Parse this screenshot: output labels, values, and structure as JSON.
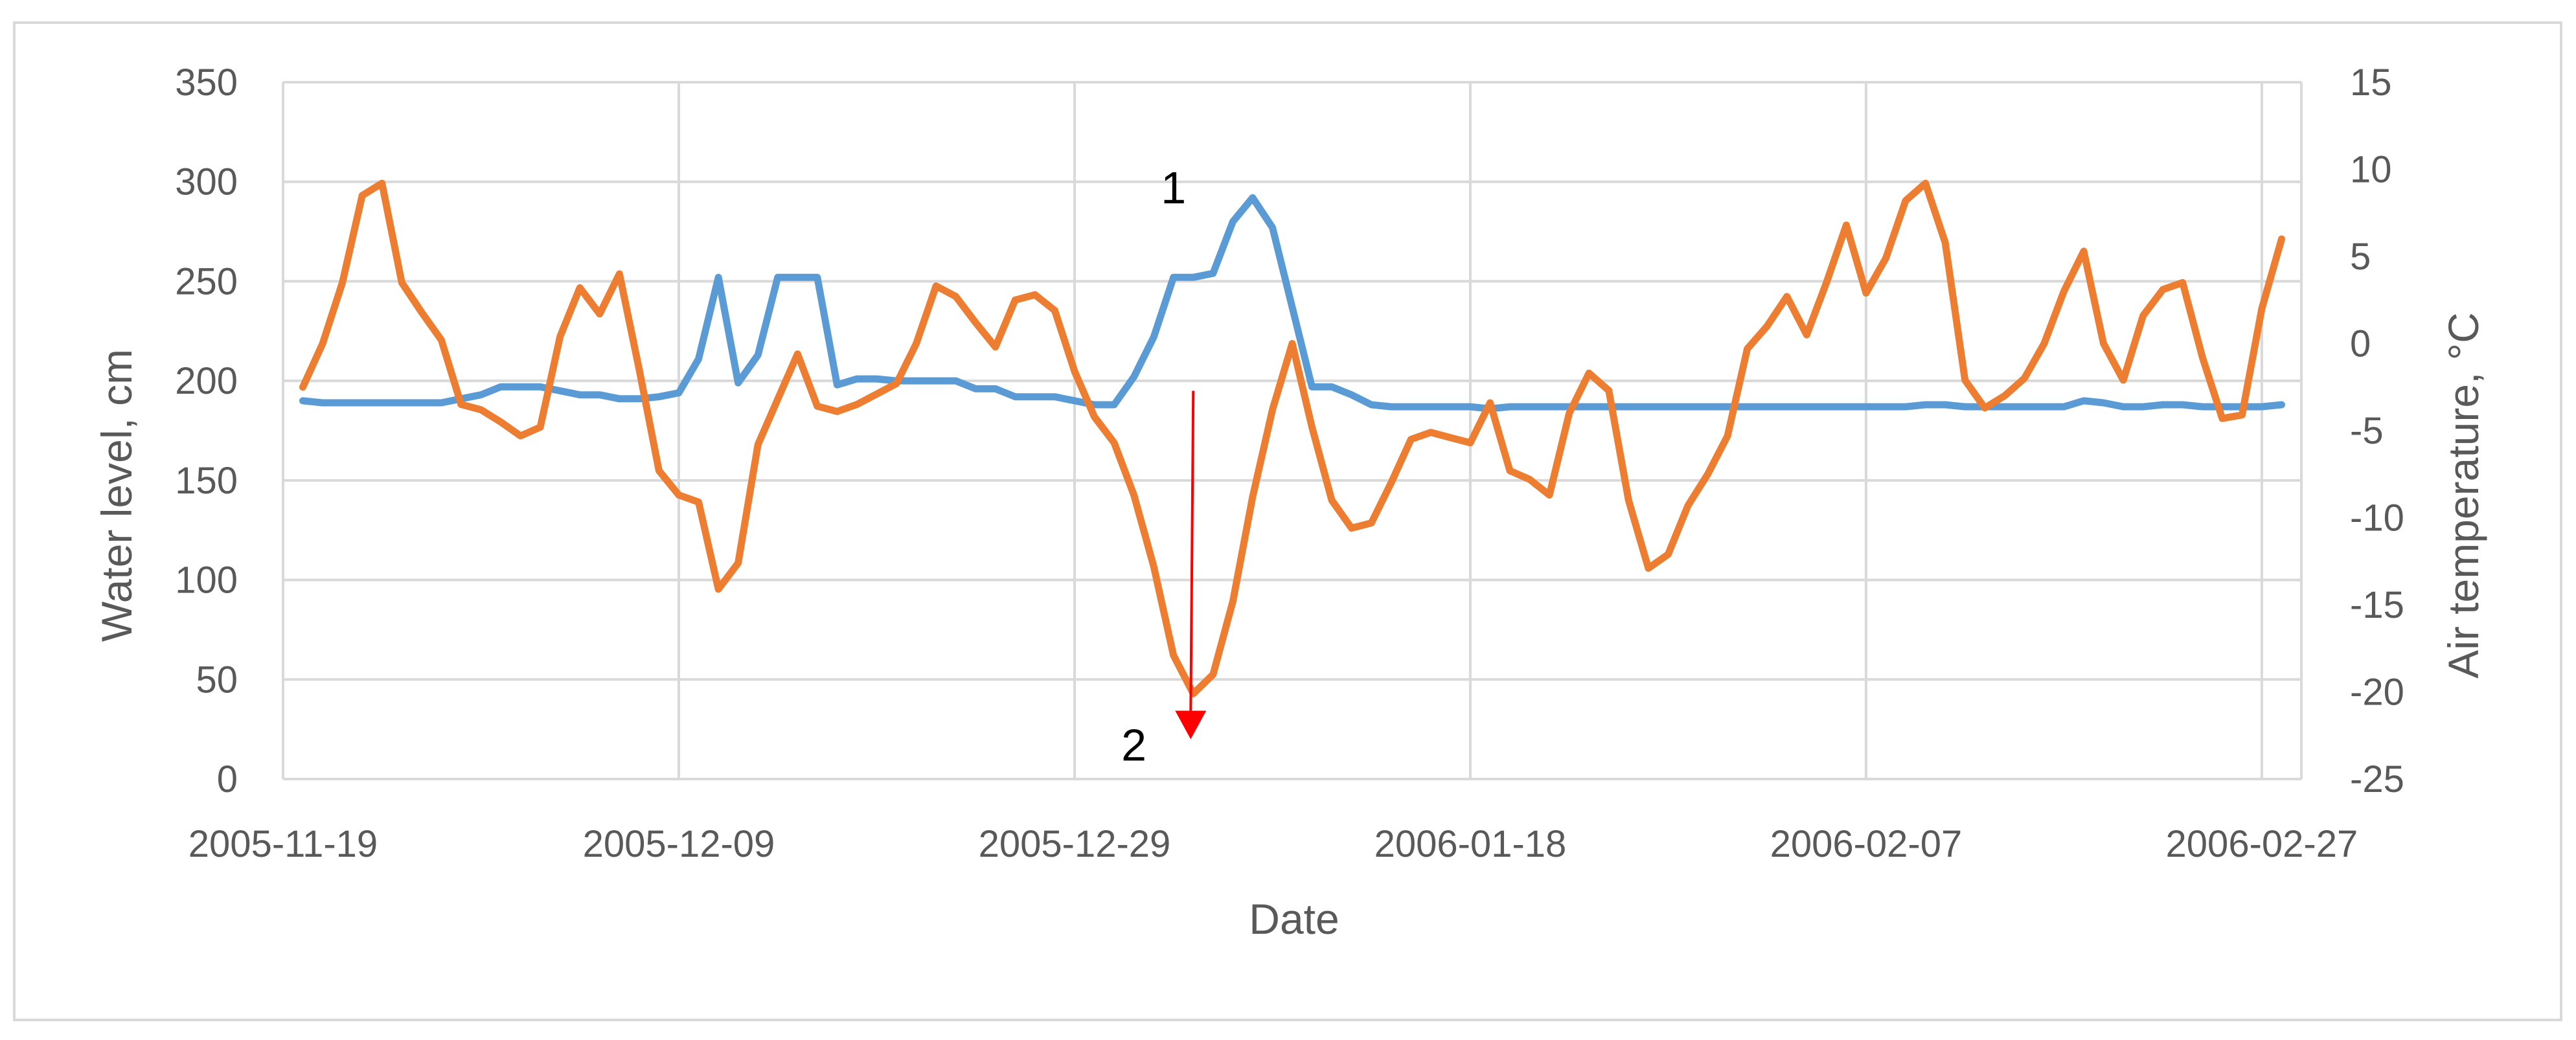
{
  "chart_data": {
    "type": "line",
    "title": "",
    "xlabel": "Date",
    "ylabel": "Water level, cm",
    "y2label": "Air temperature, °C",
    "x_ticks": [
      "2005-11-19",
      "2005-12-09",
      "2005-12-29",
      "2006-01-18",
      "2006-02-07",
      "2006-02-27"
    ],
    "x_range": [
      "2005-11-19",
      "2006-03-01"
    ],
    "ylim": [
      0,
      350
    ],
    "y_ticks": [
      0,
      50,
      100,
      150,
      200,
      250,
      300,
      350
    ],
    "y2lim": [
      -25,
      15
    ],
    "y2_ticks": [
      -25,
      -20,
      -15,
      -10,
      -5,
      0,
      5,
      10,
      15
    ],
    "grid": true,
    "legend": "none",
    "colors": {
      "series_1": "#5B9BD5",
      "series_2": "#ED7D31",
      "arrow": "#FF0000",
      "grid": "#D9D9D9"
    },
    "series": [
      {
        "axis": "left",
        "points": [
          [
            "2005-11-20",
            190
          ],
          [
            "2005-11-21",
            189
          ],
          [
            "2005-11-22",
            189
          ],
          [
            "2005-11-23",
            189
          ],
          [
            "2005-11-24",
            189
          ],
          [
            "2005-11-25",
            189
          ],
          [
            "2005-11-26",
            189
          ],
          [
            "2005-11-27",
            189
          ],
          [
            "2005-11-28",
            191
          ],
          [
            "2005-11-29",
            193
          ],
          [
            "2005-11-30",
            197
          ],
          [
            "2005-12-01",
            197
          ],
          [
            "2005-12-02",
            197
          ],
          [
            "2005-12-03",
            195
          ],
          [
            "2005-12-04",
            193
          ],
          [
            "2005-12-05",
            193
          ],
          [
            "2005-12-06",
            191
          ],
          [
            "2005-12-07",
            191
          ],
          [
            "2005-12-08",
            192
          ],
          [
            "2005-12-09",
            194
          ],
          [
            "2005-12-10",
            211
          ],
          [
            "2005-12-11",
            252
          ],
          [
            "2005-12-12",
            199
          ],
          [
            "2005-12-13",
            213
          ],
          [
            "2005-12-14",
            252
          ],
          [
            "2005-12-15",
            252
          ],
          [
            "2005-12-16",
            252
          ],
          [
            "2005-12-17",
            198
          ],
          [
            "2005-12-18",
            201
          ],
          [
            "2005-12-19",
            201
          ],
          [
            "2005-12-20",
            200
          ],
          [
            "2005-12-21",
            200
          ],
          [
            "2005-12-22",
            200
          ],
          [
            "2005-12-23",
            200
          ],
          [
            "2005-12-24",
            196
          ],
          [
            "2005-12-25",
            196
          ],
          [
            "2005-12-26",
            192
          ],
          [
            "2005-12-27",
            192
          ],
          [
            "2005-12-28",
            192
          ],
          [
            "2005-12-29",
            190
          ],
          [
            "2005-12-30",
            188
          ],
          [
            "2005-12-31",
            188
          ],
          [
            "2006-01-01",
            202
          ],
          [
            "2006-01-02",
            222
          ],
          [
            "2006-01-03",
            252
          ],
          [
            "2006-01-04",
            252
          ],
          [
            "2006-01-05",
            254
          ],
          [
            "2006-01-06",
            280
          ],
          [
            "2006-01-07",
            292
          ],
          [
            "2006-01-08",
            277
          ],
          [
            "2006-01-09",
            237
          ],
          [
            "2006-01-10",
            197
          ],
          [
            "2006-01-11",
            197
          ],
          [
            "2006-01-12",
            193
          ],
          [
            "2006-01-13",
            188
          ],
          [
            "2006-01-14",
            187
          ],
          [
            "2006-01-15",
            187
          ],
          [
            "2006-01-16",
            187
          ],
          [
            "2006-01-17",
            187
          ],
          [
            "2006-01-18",
            187
          ],
          [
            "2006-01-19",
            186
          ],
          [
            "2006-01-20",
            187
          ],
          [
            "2006-01-21",
            187
          ],
          [
            "2006-01-22",
            187
          ],
          [
            "2006-01-23",
            187
          ],
          [
            "2006-01-24",
            187
          ],
          [
            "2006-01-25",
            187
          ],
          [
            "2006-01-26",
            187
          ],
          [
            "2006-01-27",
            187
          ],
          [
            "2006-01-28",
            187
          ],
          [
            "2006-01-29",
            187
          ],
          [
            "2006-01-30",
            187
          ],
          [
            "2006-01-31",
            187
          ],
          [
            "2006-02-01",
            187
          ],
          [
            "2006-02-02",
            187
          ],
          [
            "2006-02-03",
            187
          ],
          [
            "2006-02-04",
            187
          ],
          [
            "2006-02-05",
            187
          ],
          [
            "2006-02-06",
            187
          ],
          [
            "2006-02-07",
            187
          ],
          [
            "2006-02-08",
            187
          ],
          [
            "2006-02-09",
            187
          ],
          [
            "2006-02-10",
            188
          ],
          [
            "2006-02-11",
            188
          ],
          [
            "2006-02-12",
            187
          ],
          [
            "2006-02-13",
            187
          ],
          [
            "2006-02-14",
            187
          ],
          [
            "2006-02-15",
            187
          ],
          [
            "2006-02-16",
            187
          ],
          [
            "2006-02-17",
            187
          ],
          [
            "2006-02-18",
            190
          ],
          [
            "2006-02-19",
            189
          ],
          [
            "2006-02-20",
            187
          ],
          [
            "2006-02-21",
            187
          ],
          [
            "2006-02-22",
            188
          ],
          [
            "2006-02-23",
            188
          ],
          [
            "2006-02-24",
            187
          ],
          [
            "2006-02-25",
            187
          ],
          [
            "2006-02-26",
            187
          ],
          [
            "2006-02-27",
            187
          ],
          [
            "2006-02-28",
            188
          ]
        ]
      },
      {
        "axis": "right",
        "points": [
          [
            "2005-11-20",
            -2.5
          ],
          [
            "2005-11-21",
            0
          ],
          [
            "2005-11-22",
            3.5
          ],
          [
            "2005-11-23",
            8.5
          ],
          [
            "2005-11-24",
            9.2
          ],
          [
            "2005-11-25",
            3.5
          ],
          [
            "2005-11-26",
            1.8
          ],
          [
            "2005-11-27",
            0.2
          ],
          [
            "2005-11-28",
            -3.5
          ],
          [
            "2005-11-29",
            -3.8
          ],
          [
            "2005-11-30",
            -4.5
          ],
          [
            "2005-12-01",
            -5.3
          ],
          [
            "2005-12-02",
            -4.8
          ],
          [
            "2005-12-03",
            0.4
          ],
          [
            "2005-12-04",
            3.2
          ],
          [
            "2005-12-05",
            1.7
          ],
          [
            "2005-12-06",
            4.0
          ],
          [
            "2005-12-07",
            -1.5
          ],
          [
            "2005-12-08",
            -7.3
          ],
          [
            "2005-12-09",
            -8.7
          ],
          [
            "2005-12-10",
            -9.1
          ],
          [
            "2005-12-11",
            -14.1
          ],
          [
            "2005-12-12",
            -12.6
          ],
          [
            "2005-12-13",
            -5.8
          ],
          [
            "2005-12-14",
            -3.2
          ],
          [
            "2005-12-15",
            -0.6
          ],
          [
            "2005-12-16",
            -3.6
          ],
          [
            "2005-12-17",
            -3.9
          ],
          [
            "2005-12-18",
            -3.5
          ],
          [
            "2005-12-19",
            -2.9
          ],
          [
            "2005-12-20",
            -2.3
          ],
          [
            "2005-12-21",
            0
          ],
          [
            "2005-12-22",
            3.3
          ],
          [
            "2005-12-23",
            2.7
          ],
          [
            "2005-12-24",
            1.2
          ],
          [
            "2005-12-25",
            -0.2
          ],
          [
            "2005-12-26",
            2.5
          ],
          [
            "2005-12-27",
            2.8
          ],
          [
            "2005-12-28",
            1.9
          ],
          [
            "2005-12-29",
            -1.6
          ],
          [
            "2005-12-30",
            -4.2
          ],
          [
            "2005-12-31",
            -5.7
          ],
          [
            "2006-01-01",
            -8.7
          ],
          [
            "2006-01-02",
            -12.8
          ],
          [
            "2006-01-03",
            -17.9
          ],
          [
            "2006-01-04",
            -20.1
          ],
          [
            "2006-01-05",
            -19.0
          ],
          [
            "2006-01-06",
            -14.8
          ],
          [
            "2006-01-07",
            -8.8
          ],
          [
            "2006-01-08",
            -3.8
          ],
          [
            "2006-01-09",
            0
          ],
          [
            "2006-01-10",
            -4.8
          ],
          [
            "2006-01-11",
            -9.0
          ],
          [
            "2006-01-12",
            -10.6
          ],
          [
            "2006-01-13",
            -10.3
          ],
          [
            "2006-01-14",
            -8.0
          ],
          [
            "2006-01-15",
            -5.5
          ],
          [
            "2006-01-16",
            -5.1
          ],
          [
            "2006-01-17",
            -5.4
          ],
          [
            "2006-01-18",
            -5.7
          ],
          [
            "2006-01-19",
            -3.4
          ],
          [
            "2006-01-20",
            -7.3
          ],
          [
            "2006-01-21",
            -7.8
          ],
          [
            "2006-01-22",
            -8.7
          ],
          [
            "2006-01-23",
            -4.0
          ],
          [
            "2006-01-24",
            -1.7
          ],
          [
            "2006-01-25",
            -2.7
          ],
          [
            "2006-01-26",
            -9.0
          ],
          [
            "2006-01-27",
            -12.9
          ],
          [
            "2006-01-28",
            -12.1
          ],
          [
            "2006-01-29",
            -9.3
          ],
          [
            "2006-01-30",
            -7.5
          ],
          [
            "2006-01-31",
            -5.3
          ],
          [
            "2006-02-01",
            -0.3
          ],
          [
            "2006-02-02",
            1.0
          ],
          [
            "2006-02-03",
            2.7
          ],
          [
            "2006-02-04",
            0.5
          ],
          [
            "2006-02-05",
            3.5
          ],
          [
            "2006-02-06",
            6.8
          ],
          [
            "2006-02-07",
            2.9
          ],
          [
            "2006-02-08",
            4.9
          ],
          [
            "2006-02-09",
            8.2
          ],
          [
            "2006-02-10",
            9.2
          ],
          [
            "2006-02-11",
            5.8
          ],
          [
            "2006-02-12",
            -2.1
          ],
          [
            "2006-02-13",
            -3.7
          ],
          [
            "2006-02-14",
            -3.0
          ],
          [
            "2006-02-15",
            -2.0
          ],
          [
            "2006-02-16",
            0
          ],
          [
            "2006-02-17",
            3.0
          ],
          [
            "2006-02-18",
            5.3
          ],
          [
            "2006-02-19",
            0
          ],
          [
            "2006-02-20",
            -2.1
          ],
          [
            "2006-02-21",
            1.6
          ],
          [
            "2006-02-22",
            3.1
          ],
          [
            "2006-02-23",
            3.5
          ],
          [
            "2006-02-24",
            -0.8
          ],
          [
            "2006-02-25",
            -4.3
          ],
          [
            "2006-02-26",
            -4.1
          ],
          [
            "2006-02-27",
            2.0
          ],
          [
            "2006-02-28",
            6.0
          ]
        ]
      }
    ],
    "annotations": [
      {
        "text": "1",
        "at": [
          "2006-01-03",
          297
        ]
      },
      {
        "text": "2",
        "at": [
          "2006-01-01",
          17
        ]
      }
    ],
    "arrow": {
      "from": [
        "2006-01-04",
        195
      ],
      "to": [
        "2006-01-04",
        20
      ]
    }
  }
}
